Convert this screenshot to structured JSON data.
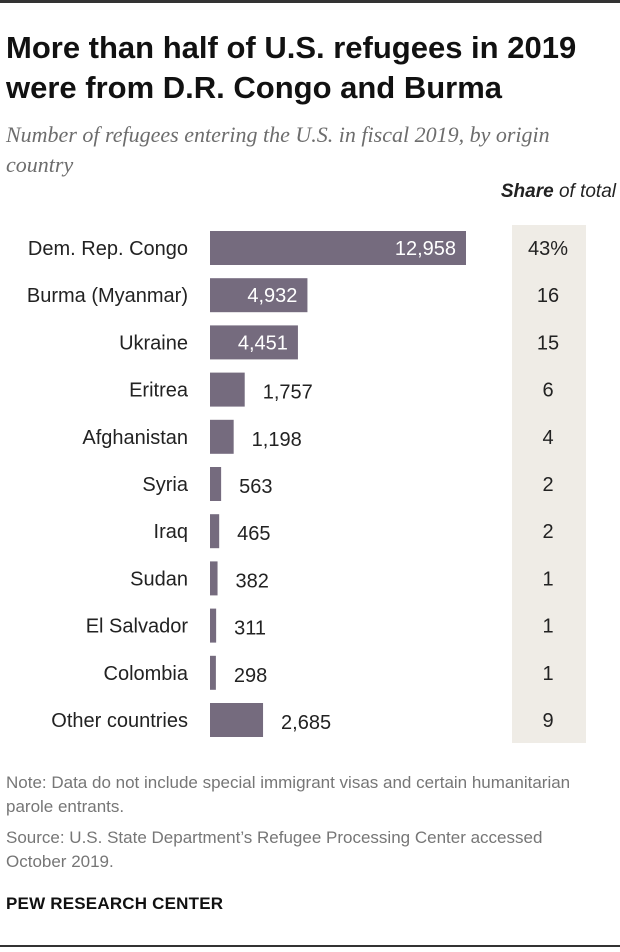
{
  "title": "More than half of U.S. refugees in 2019 were from D.R. Congo and Burma",
  "subtitle": "Number of refugees entering the U.S. in fiscal 2019, by origin country",
  "share_header": {
    "bold": "Share",
    "rest": " of total"
  },
  "note": "Note: Data do not include special immigrant visas and certain humanitarian parole entrants.",
  "source": "Source: U.S. State Department’s Refugee Processing Center accessed October 2019.",
  "logo": "PEW RESEARCH CENTER",
  "colors": {
    "bar": "#756b7e",
    "share_bg": "#efece6",
    "label_inside": "#ffffff",
    "label_outside": "#222222"
  },
  "chart_data": {
    "type": "bar",
    "orientation": "horizontal",
    "categories": [
      "Dem. Rep. Congo",
      "Burma (Myanmar)",
      "Ukraine",
      "Eritrea",
      "Afghanistan",
      "Syria",
      "Iraq",
      "Sudan",
      "El Salvador",
      "Colombia",
      "Other countries"
    ],
    "values": [
      12958,
      4932,
      4451,
      1757,
      1198,
      563,
      465,
      382,
      311,
      298,
      2685
    ],
    "value_labels": [
      "12,958",
      "4,932",
      "4,451",
      "1,757",
      "1,198",
      "563",
      "465",
      "382",
      "311",
      "298",
      "2,685"
    ],
    "share_of_total": [
      "43%",
      "16",
      "15",
      "6",
      "4",
      "2",
      "2",
      "1",
      "1",
      "1",
      "9"
    ],
    "grid": false,
    "legend": "none"
  }
}
